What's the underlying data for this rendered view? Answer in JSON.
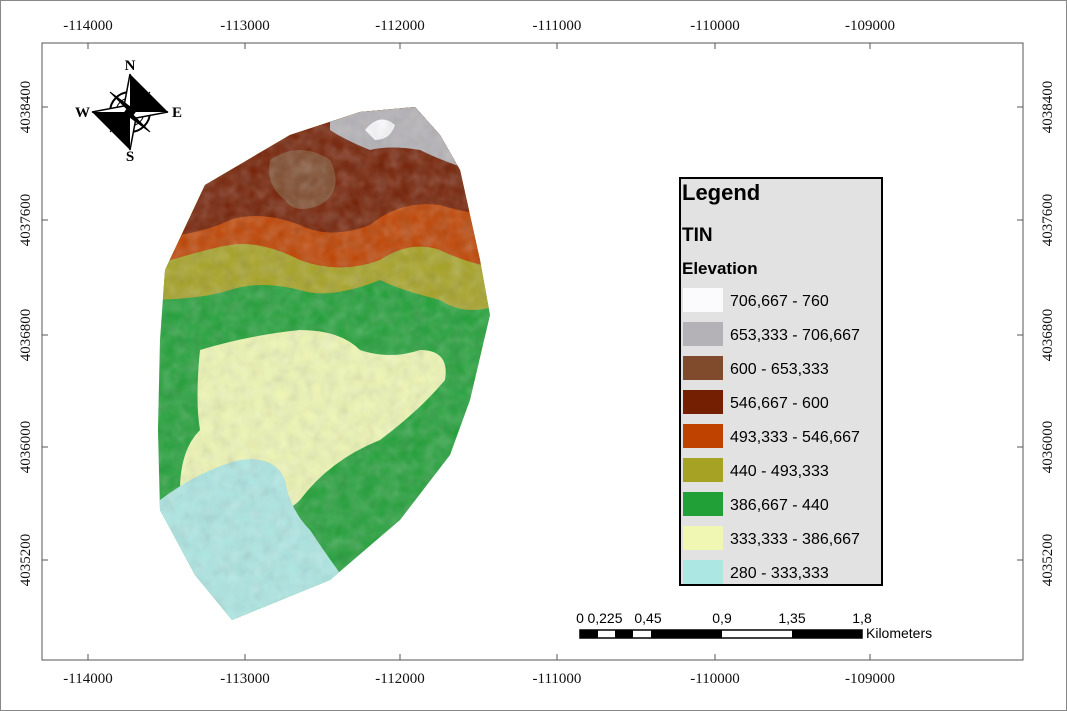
{
  "map": {
    "x_ticks": [
      -114000,
      -113000,
      -112000,
      -111000,
      -110000,
      -109000
    ],
    "y_ticks": [
      4038400,
      4037600,
      4036800,
      4036000,
      4035200
    ],
    "compass": {
      "north": "N",
      "south": "S",
      "east": "E",
      "west": "W"
    },
    "legend": {
      "title": "Legend",
      "layer": "TIN",
      "field": "Elevation",
      "classes": [
        {
          "label": "706,667 - 760",
          "color": "#fbfbfd"
        },
        {
          "label": "653,333 - 706,667",
          "color": "#b4b2b6"
        },
        {
          "label": "600 - 653,333",
          "color": "#7f4b2c"
        },
        {
          "label": "546,667 - 600",
          "color": "#741e02"
        },
        {
          "label": "493,333 - 546,667",
          "color": "#bf4200"
        },
        {
          "label": "440 - 493,333",
          "color": "#a6a223"
        },
        {
          "label": "386,667 - 440",
          "color": "#20a037"
        },
        {
          "label": "333,333 - 386,667",
          "color": "#eff7b3"
        },
        {
          "label": "280 - 333,333",
          "color": "#ace7e3"
        }
      ]
    },
    "scale_bar": {
      "labels": [
        "0",
        "0,225",
        "0,45",
        "0,9",
        "1,35",
        "1,8"
      ],
      "unit": "Kilometers"
    }
  }
}
